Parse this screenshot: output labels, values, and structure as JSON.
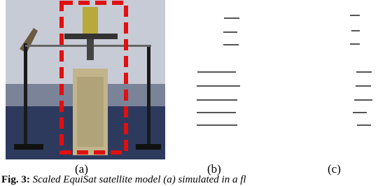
{
  "labels": [
    "(a)",
    "(b)",
    "(c)"
  ],
  "caption": {
    "number": "Fig. 3:",
    "text": "Scaled EquiSat satellite model (a) simulated in a fl"
  }
}
